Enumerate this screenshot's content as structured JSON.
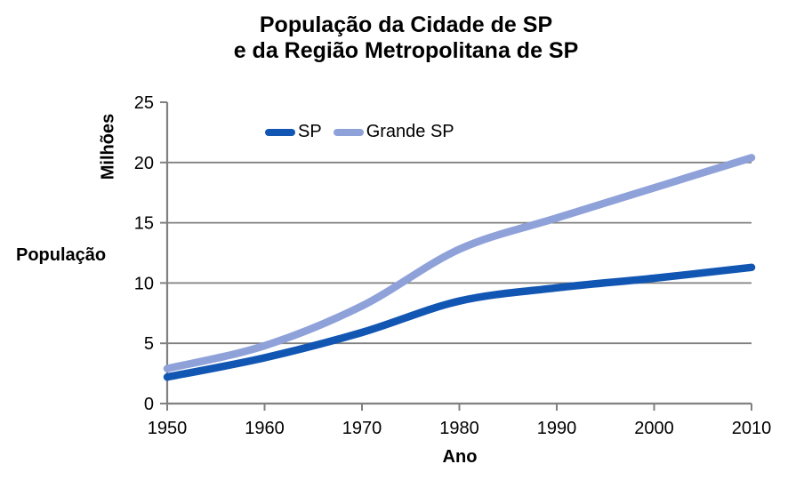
{
  "title": {
    "line1": "População da Cidade de SP",
    "line2": "e da Região Metropolitana de SP"
  },
  "axes": {
    "x_title": "Ano",
    "y_title": "Milhões",
    "y_side_label": "População"
  },
  "chart_data": {
    "type": "line",
    "title": "População da Cidade de SP e da Região Metropolitana de SP",
    "xlabel": "Ano",
    "ylabel": "Milhões",
    "x": [
      1950,
      1960,
      1970,
      1980,
      1990,
      2000,
      2010
    ],
    "series": [
      {
        "name": "SP",
        "color": "#1256b4",
        "values": [
          2.2,
          3.8,
          5.9,
          8.5,
          9.6,
          10.4,
          11.3
        ]
      },
      {
        "name": "Grande SP",
        "color": "#8ea1d9",
        "values": [
          2.9,
          4.8,
          8.1,
          12.8,
          15.4,
          17.9,
          20.4
        ]
      }
    ],
    "xlim": [
      1950,
      2010
    ],
    "ylim": [
      0,
      25
    ],
    "xticks": [
      1950,
      1960,
      1970,
      1980,
      1990,
      2000,
      2010
    ],
    "yticks": [
      0,
      5,
      10,
      15,
      20,
      25
    ],
    "grid": "horizontal",
    "gridline_color": "#808080",
    "axis_color": "#808080",
    "tick_label_color": "#000000",
    "legend_position": "top-center",
    "line_width": 8.5
  }
}
